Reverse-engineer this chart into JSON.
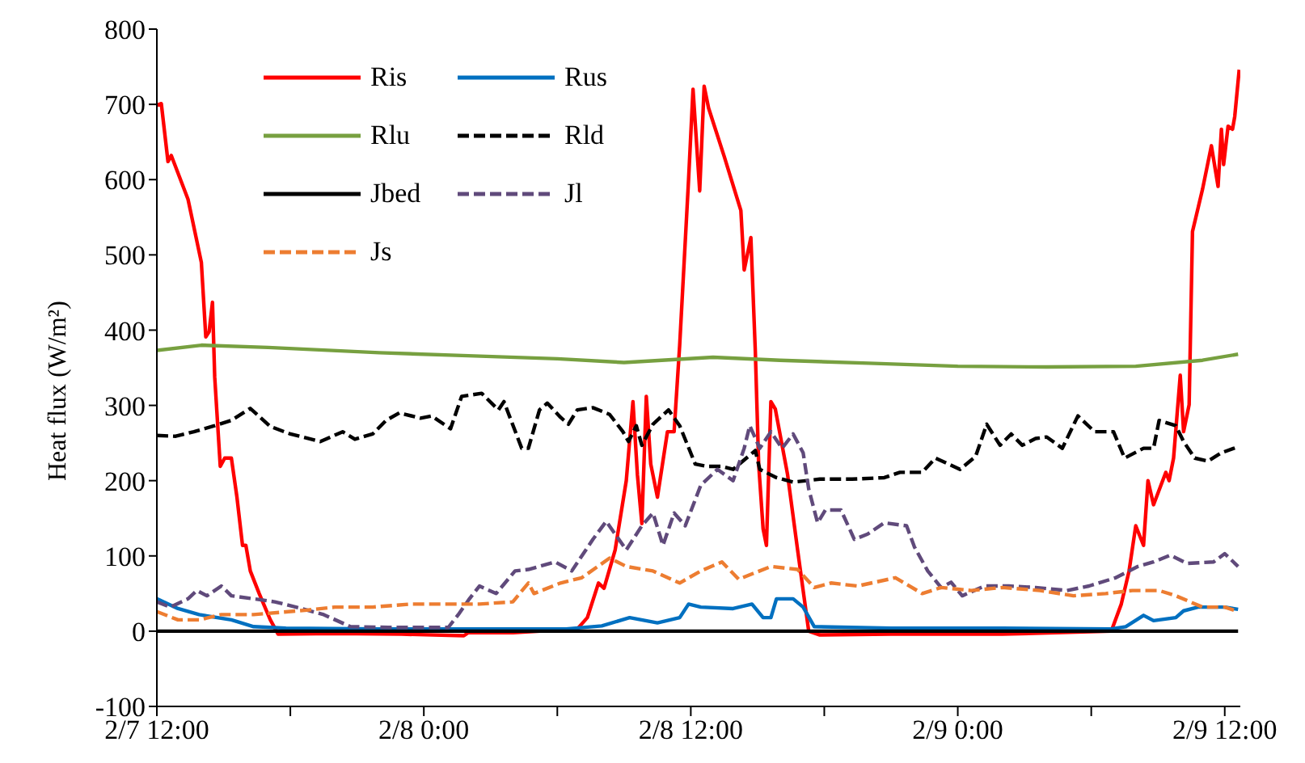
{
  "chart_data": {
    "type": "line",
    "ylabel": "Heat flux (W/m²)",
    "xlim": [
      "--02-07T12:00",
      "--02-09T12:42"
    ],
    "xticks": [
      {
        "value": "--02-07T12:00",
        "label": "2/7 12:00"
      },
      {
        "value": "--02-07T18:00",
        "label": null
      },
      {
        "value": "--02-08T00:00",
        "label": "2/8 0:00"
      },
      {
        "value": "--02-08T06:00",
        "label": null
      },
      {
        "value": "--02-08T12:00",
        "label": "2/8 12:00"
      },
      {
        "value": "--02-08T18:00",
        "label": null
      },
      {
        "value": "--02-09T00:00",
        "label": "2/9 0:00"
      },
      {
        "value": "--02-09T06:00",
        "label": null
      },
      {
        "value": "--02-09T12:00",
        "label": "2/9 12:00"
      }
    ],
    "ylim": [
      -100,
      800
    ],
    "yticks": [
      -100,
      0,
      100,
      200,
      300,
      400,
      500,
      600,
      700,
      800
    ],
    "legend": "top left",
    "marker": "none",
    "series": [
      {
        "name": "Ris",
        "color": "#ff0000",
        "line_style": "solid",
        "x": [
          "--02-07T12:00",
          "--02-07T12:12",
          "--02-07T12:30",
          "--02-07T12:39",
          "--02-07T13:24",
          "--02-07T14:00",
          "--02-07T14:12",
          "--02-07T14:21",
          "--02-07T14:30",
          "--02-07T14:36",
          "--02-07T14:51",
          "--02-07T15:03",
          "--02-07T15:21",
          "--02-07T15:36",
          "--02-07T15:51",
          "--02-07T16:00",
          "--02-07T16:12",
          "--02-07T16:36",
          "--02-07T17:06",
          "--02-07T17:27",
          "--02-07T20:00",
          "--02-07T23:00",
          "--02-08T01:48",
          "--02-08T02:00",
          "--02-08T04:00",
          "--02-08T06:54",
          "--02-08T07:21",
          "--02-08T07:51",
          "--02-08T08:06",
          "--02-08T08:36",
          "--02-08T09:06",
          "--02-08T09:24",
          "--02-08T09:36",
          "--02-08T09:48",
          "--02-08T10:00",
          "--02-08T10:12",
          "--02-08T10:30",
          "--02-08T10:57",
          "--02-08T11:15",
          "--02-08T11:30",
          "--02-08T11:54",
          "--02-08T12:06",
          "--02-08T12:24",
          "--02-08T12:36",
          "--02-08T12:48",
          "--02-08T13:30",
          "--02-08T14:15",
          "--02-08T14:24",
          "--02-08T14:42",
          "--02-08T14:54",
          "--02-08T15:03",
          "--02-08T15:15",
          "--02-08T15:24",
          "--02-08T15:36",
          "--02-08T15:48",
          "--02-08T16:21",
          "--02-08T16:48",
          "--02-08T17:18",
          "--02-08T17:48",
          "--02-08T21:00",
          "--02-09T02:00",
          "--02-09T06:54",
          "--02-09T07:21",
          "--02-09T07:42",
          "--02-09T08:00",
          "--02-09T08:21",
          "--02-09T08:33",
          "--02-09T08:48",
          "--02-09T09:21",
          "--02-09T09:30",
          "--02-09T09:42",
          "--02-09T10:00",
          "--02-09T10:09",
          "--02-09T10:24",
          "--02-09T10:33",
          "--02-09T11:00",
          "--02-09T11:24",
          "--02-09T11:42",
          "--02-09T11:51",
          "--02-09T11:57",
          "--02-09T12:09",
          "--02-09T12:21",
          "--02-09T12:27",
          "--02-09T12:39"
        ],
        "values": [
          699,
          701,
          624,
          632,
          574,
          490,
          391,
          398,
          437,
          338,
          219,
          230,
          230,
          178,
          114,
          114,
          80,
          50,
          15,
          -4,
          -3,
          -4,
          -6,
          -2,
          -2,
          3,
          18,
          64,
          57,
          108,
          200,
          305,
          208,
          143,
          312,
          222,
          178,
          265,
          265,
          380,
          600,
          720,
          585,
          724,
          695,
          631,
          559,
          480,
          523,
          372,
          222,
          136,
          114,
          305,
          295,
          208,
          108,
          0,
          -5,
          -4,
          -4,
          0,
          36,
          80,
          140,
          114,
          200,
          168,
          211,
          200,
          230,
          340,
          265,
          301,
          531,
          587,
          645,
          591,
          667,
          620,
          671,
          667,
          684,
          746
        ]
      },
      {
        "name": "Rus",
        "color": "#0070c0",
        "line_style": "solid",
        "x": [
          "--02-07T12:00",
          "--02-07T12:57",
          "--02-07T13:54",
          "--02-07T15:21",
          "--02-07T16:21",
          "--02-07T17:48",
          "--02-07T22:00",
          "--02-08T02:00",
          "--02-08T06:24",
          "--02-08T08:00",
          "--02-08T09:15",
          "--02-08T10:30",
          "--02-08T11:30",
          "--02-08T11:54",
          "--02-08T12:27",
          "--02-08T13:54",
          "--02-08T14:45",
          "--02-08T15:15",
          "--02-08T15:36",
          "--02-08T15:51",
          "--02-08T16:36",
          "--02-08T17:03",
          "--02-08T17:33",
          "--02-08T21:00",
          "--02-09T02:00",
          "--02-09T06:54",
          "--02-09T07:33",
          "--02-09T08:21",
          "--02-09T08:48",
          "--02-09T09:48",
          "--02-09T10:09",
          "--02-09T10:48",
          "--02-09T12:00",
          "--02-09T12:36"
        ],
        "values": [
          43,
          30,
          22,
          15,
          6,
          4,
          3,
          3,
          3,
          7,
          18,
          11,
          18,
          36,
          32,
          30,
          36,
          18,
          18,
          43,
          43,
          32,
          6,
          4,
          4,
          3,
          6,
          21,
          14,
          18,
          27,
          32,
          32,
          29
        ]
      },
      {
        "name": "Rlu",
        "color": "#77a040",
        "line_style": "solid",
        "x": [
          "--02-07T12:00",
          "--02-07T14:00",
          "--02-07T17:00",
          "--02-07T22:00",
          "--02-08T02:00",
          "--02-08T06:00",
          "--02-08T09:00",
          "--02-08T13:00",
          "--02-08T16:00",
          "--02-08T20:00",
          "--02-09T00:00",
          "--02-09T04:00",
          "--02-09T08:00",
          "--02-09T11:00",
          "--02-09T12:36"
        ],
        "values": [
          373,
          380,
          377,
          370,
          366,
          362,
          357,
          364,
          360,
          356,
          352,
          351,
          352,
          360,
          368
        ]
      },
      {
        "name": "Rld",
        "color": "#000000",
        "line_style": "dashed",
        "x": [
          "--02-07T12:00",
          "--02-07T12:51",
          "--02-07T13:40",
          "--02-07T14:36",
          "--02-07T15:21",
          "--02-07T16:12",
          "--02-07T17:06",
          "--02-07T18:00",
          "--02-07T19:21",
          "--02-07T20:21",
          "--02-07T20:54",
          "--02-07T21:42",
          "--02-07T22:18",
          "--02-07T22:54",
          "--02-07T23:51",
          "--02-08T00:21",
          "--02-08T01:12",
          "--02-08T01:42",
          "--02-08T02:36",
          "--02-08T03:21",
          "--02-08T03:36",
          "--02-08T04:24",
          "--02-08T04:42",
          "--02-08T05:12",
          "--02-08T05:33",
          "--02-08T06:09",
          "--02-08T06:30",
          "--02-08T06:54",
          "--02-08T07:36",
          "--02-08T08:21",
          "--02-08T08:57",
          "--02-08T09:12",
          "--02-08T09:33",
          "--02-08T09:48",
          "--02-08T10:18",
          "--02-08T11:00",
          "--02-08T11:30",
          "--02-08T12:12",
          "--02-08T12:42",
          "--02-08T13:24",
          "--02-08T13:54",
          "--02-08T14:54",
          "--02-08T15:06",
          "--02-08T15:51",
          "--02-08T16:36",
          "--02-08T17:48",
          "--02-08T19:15",
          "--02-08T20:42",
          "--02-08T21:24",
          "--02-08T22:24",
          "--02-08T23:00",
          "--02-09T00:06",
          "--02-09T00:48",
          "--02-09T01:18",
          "--02-09T01:54",
          "--02-09T02:24",
          "--02-09T02:54",
          "--02-09T03:30",
          "--02-09T04:00",
          "--02-09T04:42",
          "--02-09T05:24",
          "--02-09T06:09",
          "--02-09T07:00",
          "--02-09T07:30",
          "--02-09T08:21",
          "--02-09T08:48",
          "--02-09T09:03",
          "--02-09T09:48",
          "--02-09T10:09",
          "--02-09T10:39",
          "--02-09T11:15",
          "--02-09T11:51",
          "--02-09T12:36"
        ],
        "values": [
          260,
          259,
          265,
          273,
          280,
          296,
          272,
          262,
          252,
          265,
          255,
          262,
          280,
          290,
          283,
          286,
          269,
          312,
          316,
          294,
          305,
          243,
          243,
          294,
          303,
          284,
          275,
          294,
          297,
          288,
          265,
          252,
          273,
          247,
          275,
          294,
          273,
          222,
          219,
          219,
          215,
          240,
          215,
          204,
          198,
          202,
          202,
          204,
          211,
          211,
          230,
          215,
          232,
          275,
          247,
          262,
          247,
          256,
          258,
          243,
          286,
          265,
          265,
          230,
          243,
          243,
          280,
          273,
          252,
          230,
          226,
          237,
          245
        ]
      },
      {
        "name": "Jbed",
        "color": "#000000",
        "line_style": "solid",
        "x": [
          "--02-07T12:00",
          "--02-08T00:00",
          "--02-08T12:00",
          "--02-09T00:00",
          "--02-09T12:36"
        ],
        "values": [
          0,
          0,
          0,
          0,
          0
        ]
      },
      {
        "name": "Jl",
        "color": "#604a7b",
        "line_style": "dashed",
        "x": [
          "--02-07T12:00",
          "--02-07T12:36",
          "--02-07T13:24",
          "--02-07T13:48",
          "--02-07T14:15",
          "--02-07T14:54",
          "--02-07T15:21",
          "--02-07T16:21",
          "--02-07T17:18",
          "--02-07T18:15",
          "--02-07T19:30",
          "--02-07T20:42",
          "--02-07T22:24",
          "--02-08T01:06",
          "--02-08T01:33",
          "--02-08T02:03",
          "--02-08T02:30",
          "--02-08T03:15",
          "--02-08T04:06",
          "--02-08T04:42",
          "--02-08T05:54",
          "--02-08T06:39",
          "--02-08T07:36",
          "--02-08T08:12",
          "--02-08T08:36",
          "--02-08T09:06",
          "--02-08T09:48",
          "--02-08T10:18",
          "--02-08T10:45",
          "--02-08T11:15",
          "--02-08T11:45",
          "--02-08T12:27",
          "--02-08T13:12",
          "--02-08T13:54",
          "--02-08T14:24",
          "--02-08T14:39",
          "--02-08T15:06",
          "--02-08T15:36",
          "--02-08T16:06",
          "--02-08T16:36",
          "--02-08T17:03",
          "--02-08T17:18",
          "--02-08T17:42",
          "--02-08T18:03",
          "--02-08T18:45",
          "--02-08T19:21",
          "--02-08T19:57",
          "--02-08T20:42",
          "--02-08T21:42",
          "--02-08T22:03",
          "--02-08T22:39",
          "--02-08T23:15",
          "--02-08T23:42",
          "--02-09T00:12",
          "--02-09T01:12",
          "--02-09T02:18",
          "--02-09T03:30",
          "--02-09T04:54",
          "--02-09T05:54",
          "--02-09T07:06",
          "--02-09T08:06",
          "--02-09T08:48",
          "--02-09T09:33",
          "--02-09T10:18",
          "--02-09T11:30",
          "--02-09T12:00",
          "--02-09T12:36"
        ],
        "values": [
          39,
          32,
          43,
          54,
          47,
          60,
          47,
          43,
          39,
          32,
          22,
          6,
          5,
          5,
          22,
          43,
          60,
          50,
          80,
          82,
          92,
          80,
          122,
          146,
          129,
          108,
          140,
          157,
          114,
          157,
          140,
          194,
          215,
          200,
          243,
          273,
          243,
          265,
          243,
          262,
          237,
          189,
          144,
          161,
          161,
          122,
          129,
          144,
          140,
          112,
          80,
          58,
          65,
          47,
          60,
          60,
          58,
          54,
          60,
          71,
          86,
          92,
          101,
          90,
          92,
          103,
          86
        ]
      },
      {
        "name": "Js",
        "color": "#ed7d31",
        "line_style": "dashed",
        "x": [
          "--02-07T12:00",
          "--02-07T12:57",
          "--02-07T13:54",
          "--02-07T14:54",
          "--02-07T16:21",
          "--02-07T18:45",
          "--02-07T20:00",
          "--02-07T21:42",
          "--02-07T23:24",
          "--02-08T01:06",
          "--02-08T02:30",
          "--02-08T04:00",
          "--02-08T04:42",
          "--02-08T04:57",
          "--02-08T06:09",
          "--02-08T07:06",
          "--02-08T08:21",
          "--02-08T09:06",
          "--02-08T10:18",
          "--02-08T11:30",
          "--02-08T12:27",
          "--02-08T13:24",
          "--02-08T14:09",
          "--02-08T15:36",
          "--02-08T16:48",
          "--02-08T17:33",
          "--02-08T18:18",
          "--02-08T19:30",
          "--02-08T21:12",
          "--02-08T22:24",
          "--02-08T23:15",
          "--02-09T00:36",
          "--02-09T02:00",
          "--02-09T03:42",
          "--02-09T05:12",
          "--02-09T06:39",
          "--02-09T07:51",
          "--02-09T09:03",
          "--02-09T09:48",
          "--02-09T11:00",
          "--02-09T12:00",
          "--02-09T12:36"
        ],
        "values": [
          26,
          15,
          15,
          22,
          22,
          28,
          32,
          32,
          36,
          36,
          36,
          39,
          64,
          50,
          64,
          71,
          97,
          86,
          80,
          64,
          80,
          92,
          69,
          86,
          82,
          58,
          64,
          60,
          71,
          50,
          58,
          54,
          58,
          54,
          47,
          50,
          54,
          54,
          47,
          32,
          32,
          26
        ]
      }
    ]
  }
}
